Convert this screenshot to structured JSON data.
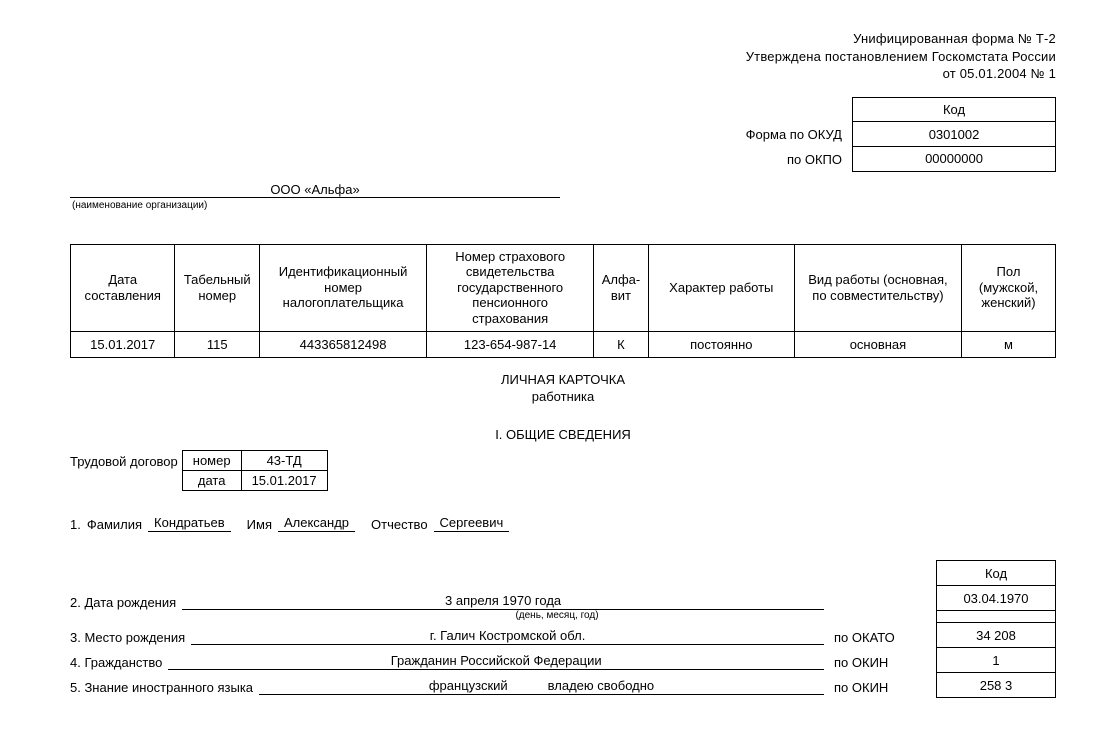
{
  "header": {
    "line1": "Унифицированная  форма № Т-2",
    "line2": "Утверждена постановлением Госкомстата России",
    "line3": "от 05.01.2004  № 1"
  },
  "code_block": {
    "header": "Код",
    "okud_label": "Форма по ОКУД",
    "okud_value": "0301002",
    "okpo_label": "по ОКПО",
    "okpo_value": "00000000"
  },
  "organization": {
    "value": "ООО  «Альфа»",
    "caption": "(наименование организации)"
  },
  "main_table": {
    "headers": [
      "Дата составления",
      "Табельный номер",
      "Идентификационный номер налогоплательщика",
      "Номер страхового свидетельства государственного пенсионного страхования",
      "Алфа-\nвит",
      "Характер работы",
      "Вид работы (основная, по совместительству)",
      "Пол (мужской, женский)"
    ],
    "col_widths_pct": [
      10,
      8,
      16,
      16,
      5,
      14,
      16,
      9
    ],
    "row": [
      "15.01.2017",
      "115",
      "443365812498",
      "123-654-987-14",
      "К",
      "постоянно",
      "основная",
      "м"
    ]
  },
  "doc_title": {
    "line1": "ЛИЧНАЯ КАРТОЧКА",
    "line2": "работника"
  },
  "section1_title": "I. ОБЩИЕ  СВЕДЕНИЯ",
  "contract": {
    "label": "Трудовой договор",
    "number_label": "номер",
    "number_value": "43-ТД",
    "date_label": "дата",
    "date_value": "15.01.2017"
  },
  "name": {
    "item_no": "1.",
    "surname_label": "Фамилия",
    "surname_value": "Кондратьев",
    "forename_label": "Имя",
    "forename_value": "Александр",
    "patronymic_label": "Отчество",
    "patronymic_value": "Сергеевич"
  },
  "code_col_header": "Код",
  "rows": {
    "birth_date": {
      "label": "2. Дата  рождения",
      "value": "3 апреля 1970  года",
      "caption": "(день, месяц, год)",
      "code": "03.04.1970"
    },
    "birth_place": {
      "label": "3. Место рождения",
      "value": "г. Галич Костромской обл.",
      "class_label": "по ОКАТО",
      "code": "34  208"
    },
    "citizenship": {
      "label": "4. Гражданство",
      "value": "Гражданин Российской Федерации",
      "class_label": "по ОКИН",
      "code": "1"
    },
    "language": {
      "label": "5. Знание  иностранного языка",
      "value1": "французский",
      "value2": "владею свободно",
      "class_label": "по ОКИН",
      "code": "258  3"
    }
  }
}
